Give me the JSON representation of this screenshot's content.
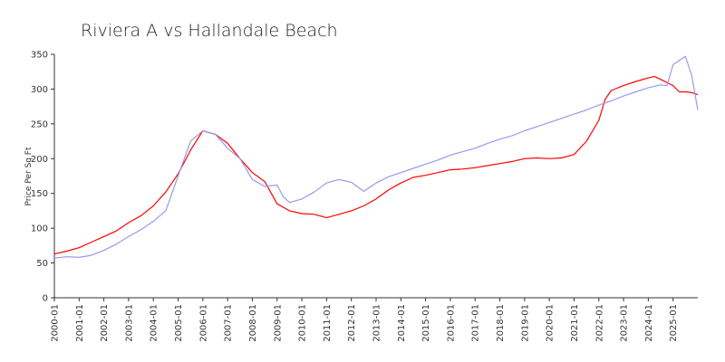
{
  "chart_data": {
    "type": "line",
    "title": "Riviera A vs Hallandale Beach",
    "ylabel": "Price Per Sq Ft",
    "xlabel": "",
    "ylim": [
      0,
      350
    ],
    "yticks": [
      0,
      50,
      100,
      150,
      200,
      250,
      300,
      350
    ],
    "xlim": [
      "2000-01",
      "2026-01"
    ],
    "xticks": [
      "2000-01",
      "2001-01",
      "2002-01",
      "2003-01",
      "2004-01",
      "2005-01",
      "2006-01",
      "2007-01",
      "2008-01",
      "2009-01",
      "2010-01",
      "2011-01",
      "2012-01",
      "2013-01",
      "2014-01",
      "2015-01",
      "2016-01",
      "2017-01",
      "2018-01",
      "2019-01",
      "2020-01",
      "2021-01",
      "2022-01",
      "2023-01",
      "2024-01",
      "2025-01"
    ],
    "grid": false,
    "legend": "none",
    "series": [
      {
        "color": "#ff0000",
        "points": [
          [
            "2000-01",
            63
          ],
          [
            "2000-07",
            67
          ],
          [
            "2001-01",
            72
          ],
          [
            "2001-07",
            80
          ],
          [
            "2002-01",
            88
          ],
          [
            "2002-07",
            96
          ],
          [
            "2003-01",
            108
          ],
          [
            "2003-07",
            118
          ],
          [
            "2004-01",
            132
          ],
          [
            "2004-07",
            152
          ],
          [
            "2005-01",
            178
          ],
          [
            "2005-07",
            212
          ],
          [
            "2006-01",
            240
          ],
          [
            "2006-07",
            235
          ],
          [
            "2007-01",
            222
          ],
          [
            "2007-07",
            200
          ],
          [
            "2008-01",
            180
          ],
          [
            "2008-07",
            167
          ],
          [
            "2009-01",
            135
          ],
          [
            "2009-07",
            125
          ],
          [
            "2010-01",
            121
          ],
          [
            "2010-07",
            120
          ],
          [
            "2011-01",
            115
          ],
          [
            "2011-07",
            120
          ],
          [
            "2012-01",
            125
          ],
          [
            "2012-07",
            132
          ],
          [
            "2013-01",
            142
          ],
          [
            "2013-07",
            155
          ],
          [
            "2014-01",
            165
          ],
          [
            "2014-07",
            173
          ],
          [
            "2015-01",
            176
          ],
          [
            "2015-07",
            180
          ],
          [
            "2016-01",
            184
          ],
          [
            "2016-07",
            185
          ],
          [
            "2017-01",
            187
          ],
          [
            "2017-07",
            190
          ],
          [
            "2018-01",
            193
          ],
          [
            "2018-07",
            196
          ],
          [
            "2019-01",
            200
          ],
          [
            "2019-07",
            201
          ],
          [
            "2020-01",
            200
          ],
          [
            "2020-07",
            201
          ],
          [
            "2021-01",
            206
          ],
          [
            "2021-07",
            225
          ],
          [
            "2022-01",
            255
          ],
          [
            "2022-04",
            285
          ],
          [
            "2022-07",
            298
          ],
          [
            "2023-01",
            305
          ],
          [
            "2023-07",
            311
          ],
          [
            "2024-01",
            316
          ],
          [
            "2024-04",
            318
          ],
          [
            "2024-07",
            314
          ],
          [
            "2025-01",
            305
          ],
          [
            "2025-04",
            296
          ],
          [
            "2025-07",
            296
          ],
          [
            "2025-10",
            295
          ],
          [
            "2026-01",
            292
          ]
        ]
      },
      {
        "color": "#9999ee",
        "points": [
          [
            "2000-01",
            57
          ],
          [
            "2000-07",
            59
          ],
          [
            "2001-01",
            58
          ],
          [
            "2001-07",
            61
          ],
          [
            "2002-01",
            68
          ],
          [
            "2002-07",
            77
          ],
          [
            "2003-01",
            88
          ],
          [
            "2003-07",
            98
          ],
          [
            "2004-01",
            110
          ],
          [
            "2004-07",
            125
          ],
          [
            "2005-01",
            175
          ],
          [
            "2005-07",
            225
          ],
          [
            "2006-01",
            240
          ],
          [
            "2006-07",
            235
          ],
          [
            "2007-01",
            215
          ],
          [
            "2007-07",
            200
          ],
          [
            "2008-01",
            170
          ],
          [
            "2008-07",
            160
          ],
          [
            "2009-01",
            162
          ],
          [
            "2009-04",
            145
          ],
          [
            "2009-07",
            137
          ],
          [
            "2010-01",
            142
          ],
          [
            "2010-07",
            152
          ],
          [
            "2011-01",
            165
          ],
          [
            "2011-07",
            170
          ],
          [
            "2012-01",
            166
          ],
          [
            "2012-07",
            153
          ],
          [
            "2013-01",
            165
          ],
          [
            "2013-07",
            174
          ],
          [
            "2014-01",
            180
          ],
          [
            "2014-07",
            186
          ],
          [
            "2015-01",
            192
          ],
          [
            "2015-07",
            198
          ],
          [
            "2016-01",
            205
          ],
          [
            "2016-07",
            210
          ],
          [
            "2017-01",
            215
          ],
          [
            "2017-07",
            222
          ],
          [
            "2018-01",
            228
          ],
          [
            "2018-07",
            233
          ],
          [
            "2019-01",
            240
          ],
          [
            "2019-07",
            246
          ],
          [
            "2020-01",
            252
          ],
          [
            "2020-07",
            258
          ],
          [
            "2021-01",
            264
          ],
          [
            "2021-07",
            270
          ],
          [
            "2022-01",
            277
          ],
          [
            "2022-07",
            283
          ],
          [
            "2023-01",
            290
          ],
          [
            "2023-07",
            296
          ],
          [
            "2024-01",
            302
          ],
          [
            "2024-07",
            306
          ],
          [
            "2024-10",
            305
          ],
          [
            "2025-01",
            335
          ],
          [
            "2025-07",
            347
          ],
          [
            "2025-10",
            320
          ],
          [
            "2026-01",
            270
          ]
        ]
      }
    ]
  }
}
